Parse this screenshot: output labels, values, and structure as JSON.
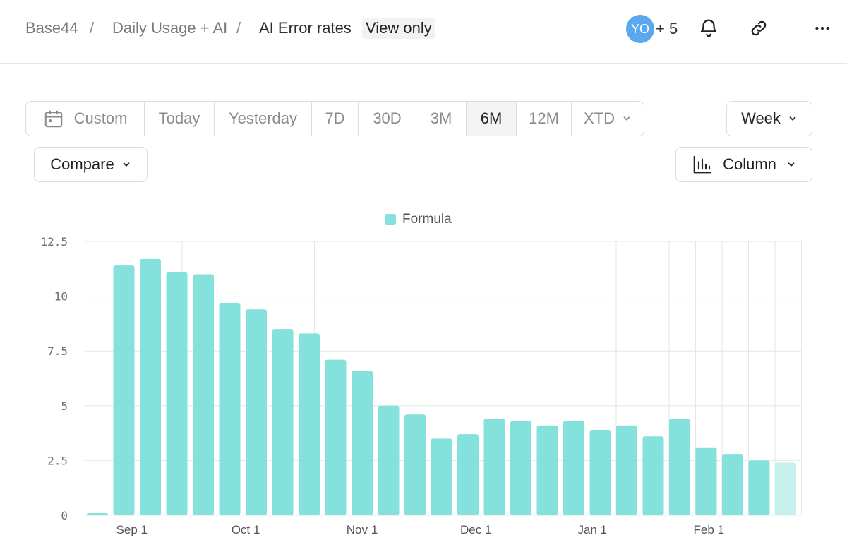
{
  "breadcrumb": {
    "items": [
      "Base44",
      "Daily Usage + AI",
      "AI Error rates"
    ],
    "separator": "/",
    "badge": "View only"
  },
  "header": {
    "avatar_initials": "YO",
    "avatar_color": "#5aa9ee",
    "extra_count": "+ 5",
    "icons": [
      "bell-icon",
      "link-icon",
      "more-icon"
    ]
  },
  "filters": {
    "ranges": [
      {
        "label": "Custom",
        "icon": "calendar-icon"
      },
      {
        "label": "Today"
      },
      {
        "label": "Yesterday"
      },
      {
        "label": "7D"
      },
      {
        "label": "30D"
      },
      {
        "label": "3M"
      },
      {
        "label": "6M",
        "active": true
      },
      {
        "label": "12M"
      },
      {
        "label": "XTD",
        "dropdown": true
      }
    ],
    "interval": "Week",
    "compare": "Compare",
    "chart_type": "Column"
  },
  "colors": {
    "bar": "#84e1dc",
    "bar_partial": "#c6f0ed"
  },
  "chart_data": {
    "type": "bar",
    "series": [
      {
        "name": "Formula",
        "values": [
          0.1,
          11.4,
          11.7,
          11.1,
          11.0,
          9.7,
          9.4,
          8.5,
          8.3,
          7.1,
          6.6,
          5.0,
          4.6,
          3.5,
          3.7,
          4.4,
          4.3,
          4.1,
          4.3,
          3.9,
          4.1,
          3.6,
          4.4,
          3.1,
          2.8,
          2.5,
          2.4
        ]
      }
    ],
    "partial_last": true,
    "ylim": [
      0,
      12.5
    ],
    "yticks": [
      "0",
      "2.5",
      "5",
      "7.5",
      "10",
      "12.5"
    ],
    "xticks": [
      {
        "label": "Sep 1",
        "index": 1.3
      },
      {
        "label": "Oct 1",
        "index": 5.6
      },
      {
        "label": "Nov 1",
        "index": 10.0
      },
      {
        "label": "Dec 1",
        "index": 14.3
      },
      {
        "label": "Jan 1",
        "index": 18.7
      },
      {
        "label": "Feb 1",
        "index": 23.1
      }
    ],
    "vertical_grid_indices": [
      3.2,
      8.2,
      19.6,
      21.6,
      22.6,
      23.6,
      24.6,
      25.6,
      26.6
    ],
    "legend_position": "top-center",
    "grid": true
  }
}
